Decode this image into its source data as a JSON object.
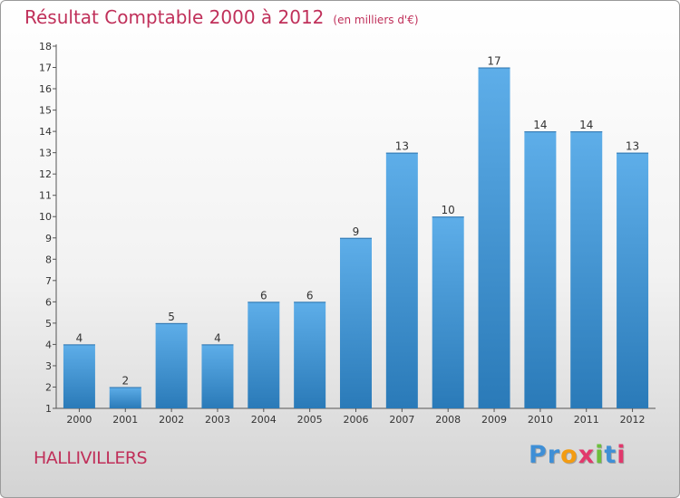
{
  "chart_data": {
    "type": "bar",
    "title": "Résultat Comptable 2000 à 2012",
    "subtitle": "(en milliers d'€)",
    "categories": [
      "2000",
      "2001",
      "2002",
      "2003",
      "2004",
      "2005",
      "2006",
      "2007",
      "2008",
      "2009",
      "2010",
      "2011",
      "2012"
    ],
    "values": [
      4,
      2,
      5,
      4,
      6,
      6,
      9,
      13,
      10,
      17,
      14,
      14,
      13
    ],
    "ylim": [
      1,
      18
    ],
    "yticks": [
      1,
      2,
      3,
      4,
      5,
      6,
      7,
      8,
      9,
      10,
      11,
      12,
      13,
      14,
      15,
      16,
      17,
      18
    ],
    "xlabel": "",
    "ylabel": "",
    "grid": false,
    "bar_color_top": "#5eaee9",
    "bar_color_bottom": "#2a7ab8"
  },
  "footer": {
    "city": "HALLIVILLERS",
    "logo_letters": [
      {
        "ch": "P",
        "color": "#3f8fd6"
      },
      {
        "ch": "r",
        "color": "#3f8fd6"
      },
      {
        "ch": "o",
        "color": "#f39c12"
      },
      {
        "ch": "x",
        "color": "#e2386c"
      },
      {
        "ch": "i",
        "color": "#6cbf3c"
      },
      {
        "ch": "t",
        "color": "#3f8fd6"
      },
      {
        "ch": "i",
        "color": "#e2386c"
      }
    ]
  },
  "colors": {
    "title": "#c0305a",
    "axis": "#333333"
  }
}
